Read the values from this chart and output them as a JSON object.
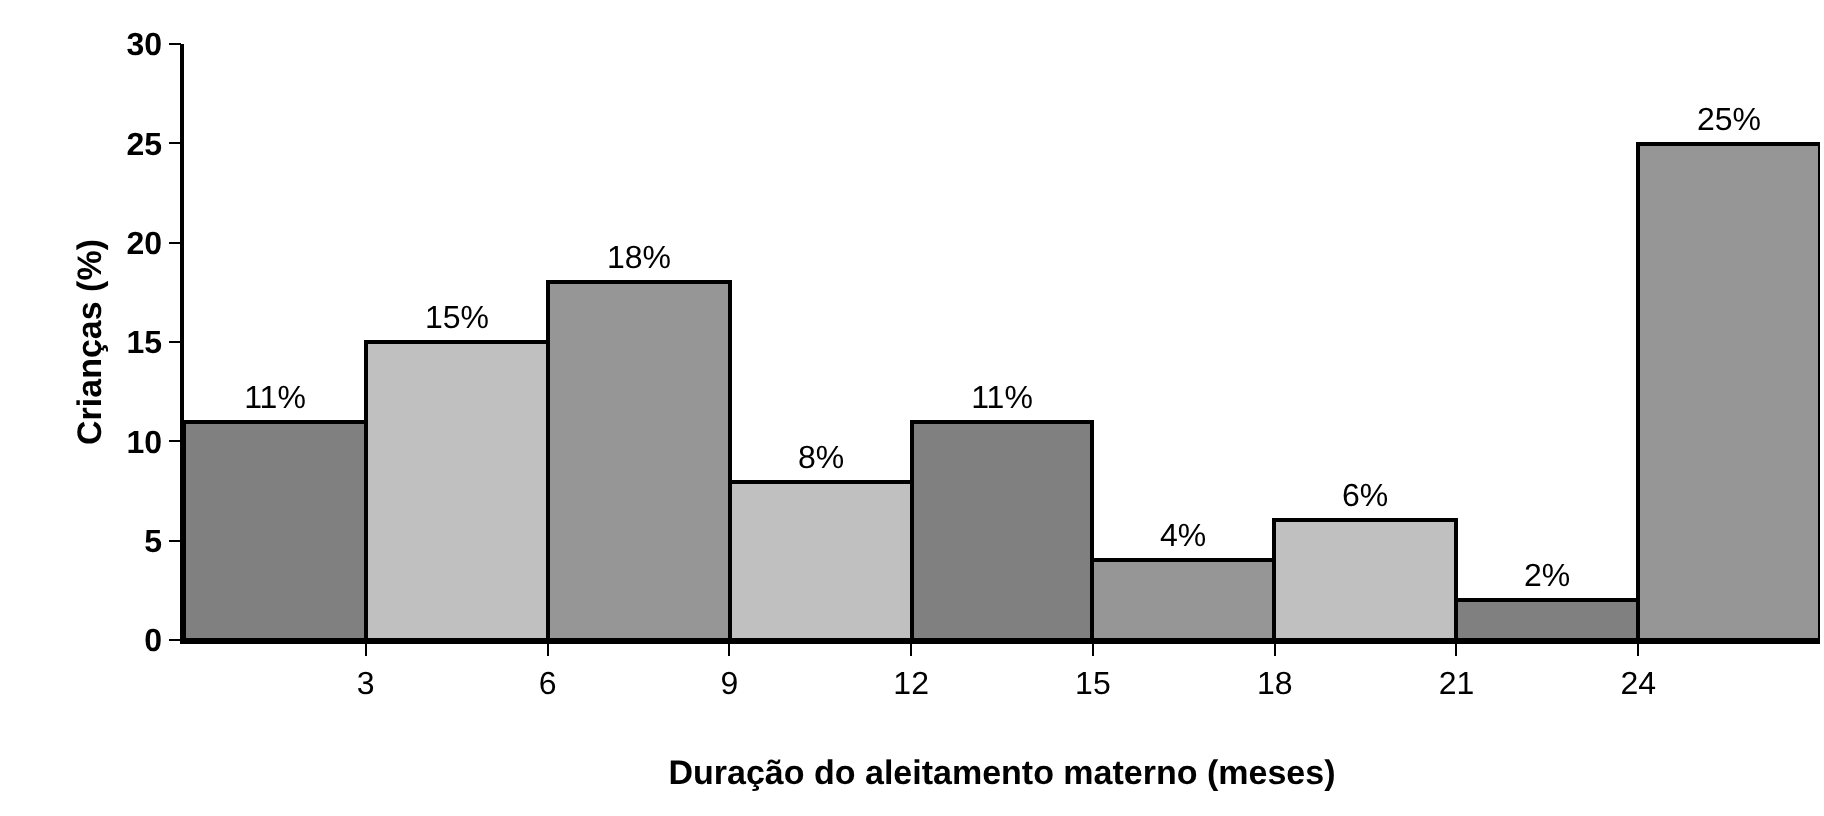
{
  "chart_data": {
    "type": "histogram",
    "xlabel": "Duração do aleitamento materno (meses)",
    "ylabel": "Crianças (%)",
    "bins": [
      0,
      3,
      6,
      9,
      12,
      15,
      18,
      21,
      24,
      27
    ],
    "values": [
      11,
      15,
      18,
      8,
      11,
      4,
      6,
      2,
      25
    ],
    "value_labels": [
      "11%",
      "15%",
      "18%",
      "8%",
      "11%",
      "4%",
      "6%",
      "2%",
      "25%"
    ],
    "colors": [
      "#808080",
      "#c0c0c0",
      "#969696",
      "#c0c0c0",
      "#808080",
      "#969696",
      "#c0c0c0",
      "#808080",
      "#969696"
    ],
    "xlim": [
      0,
      27
    ],
    "xticks": [
      3,
      6,
      9,
      12,
      15,
      18,
      21,
      24
    ],
    "ylim": [
      0,
      30
    ],
    "yticks": [
      0,
      5,
      10,
      15,
      20,
      25,
      30
    ]
  }
}
